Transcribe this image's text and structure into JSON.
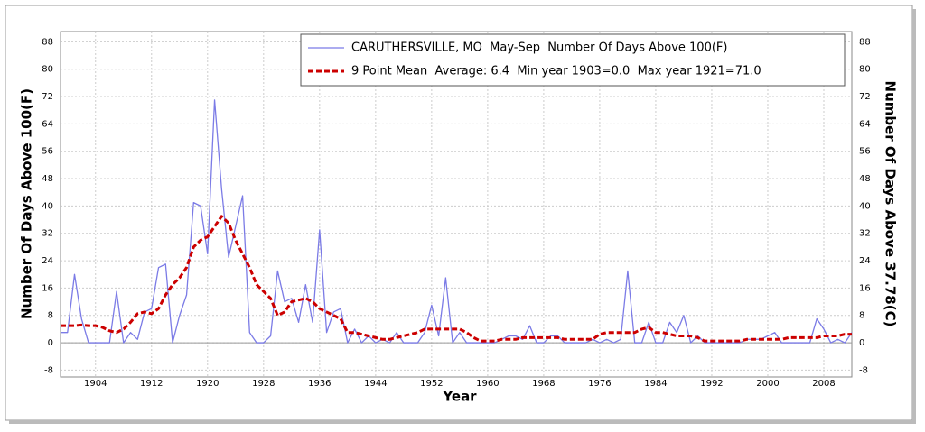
{
  "chart_data": {
    "type": "line",
    "legend_entries": [
      "CARUTHERSVILLE, MO  May-Sep  Number Of Days Above 100(F)",
      "9 Point Mean  Average: 6.4  Min year 1903=0.0  Max year 1921=71.0"
    ],
    "x_label": "Year",
    "y_label": "Number Of Days Above 100(F)",
    "y2_label": "Number Of Days Above 37.78(C)",
    "x": [
      1899,
      1900,
      1901,
      1902,
      1903,
      1904,
      1905,
      1906,
      1907,
      1908,
      1909,
      1910,
      1911,
      1912,
      1913,
      1914,
      1915,
      1916,
      1917,
      1918,
      1919,
      1920,
      1921,
      1922,
      1923,
      1924,
      1925,
      1926,
      1927,
      1928,
      1929,
      1930,
      1931,
      1932,
      1933,
      1934,
      1935,
      1936,
      1937,
      1938,
      1939,
      1940,
      1941,
      1942,
      1943,
      1944,
      1945,
      1946,
      1947,
      1948,
      1949,
      1950,
      1951,
      1952,
      1953,
      1954,
      1955,
      1956,
      1957,
      1958,
      1959,
      1960,
      1961,
      1962,
      1963,
      1964,
      1965,
      1966,
      1967,
      1968,
      1969,
      1970,
      1971,
      1972,
      1973,
      1974,
      1975,
      1976,
      1977,
      1978,
      1979,
      1980,
      1981,
      1982,
      1983,
      1984,
      1985,
      1986,
      1987,
      1988,
      1989,
      1990,
      1991,
      1992,
      1993,
      1994,
      1995,
      1996,
      1997,
      1998,
      1999,
      2000,
      2001,
      2002,
      2003,
      2004,
      2005,
      2006,
      2007,
      2008,
      2009,
      2010,
      2011,
      2012
    ],
    "series": [
      {
        "name": "CARUTHERSVILLE, MO  May-Sep  Number Of Days Above 100(F)",
        "color": "#7b7be6",
        "width": 1.3,
        "dash": false,
        "values": [
          3,
          3,
          20,
          7,
          0,
          0,
          0,
          0,
          15,
          0,
          3,
          1,
          9,
          10,
          22,
          23,
          0,
          8,
          14,
          41,
          40,
          26,
          71,
          45,
          25,
          34,
          43,
          3,
          0,
          0,
          2,
          21,
          12,
          13,
          6,
          17,
          6,
          33,
          3,
          9,
          10,
          0,
          4,
          0,
          2,
          0,
          1,
          0,
          3,
          0,
          0,
          0,
          3,
          11,
          2,
          19,
          0,
          3,
          0,
          0,
          0,
          0,
          0,
          1,
          2,
          2,
          1,
          5,
          0,
          0,
          2,
          2,
          0,
          0,
          0,
          0,
          1,
          0,
          1,
          0,
          1,
          21,
          0,
          0,
          6,
          0,
          0,
          6,
          3,
          8,
          0,
          2,
          0,
          0,
          0,
          0,
          0,
          0,
          1,
          1,
          1,
          2,
          3,
          0,
          0,
          0,
          0,
          0,
          7,
          4,
          0,
          1,
          0,
          3
        ]
      },
      {
        "name": "9 Point Mean  Average: 6.4  Min year 1903=0.0  Max year 1921=71.0",
        "color": "#cc0000",
        "width": 3,
        "dash": true,
        "values": [
          5,
          5,
          5,
          5.2,
          5,
          5,
          4.5,
          3.5,
          3,
          4,
          6,
          8.5,
          9,
          8.5,
          10,
          14,
          17,
          19,
          22,
          28,
          30,
          31,
          34,
          37,
          35,
          30,
          26,
          22,
          17,
          15,
          13,
          8,
          9,
          12,
          12.5,
          13,
          12,
          10,
          9,
          8,
          7,
          3,
          3,
          2.5,
          2,
          1.5,
          1,
          1,
          1.5,
          2,
          2.5,
          3,
          4,
          4,
          4,
          4,
          4,
          4,
          3,
          1.5,
          0.5,
          0.5,
          0.5,
          1,
          1,
          1,
          1.5,
          1.5,
          1.5,
          1.5,
          1.5,
          1.5,
          1,
          1,
          1,
          1,
          1,
          2.5,
          3,
          3,
          3,
          3,
          3,
          4,
          4.5,
          3,
          3,
          2.5,
          2,
          2,
          2,
          1.5,
          0.5,
          0.5,
          0.5,
          0.5,
          0.5,
          0.5,
          1,
          1,
          1,
          1,
          1,
          1,
          1.5,
          1.5,
          1.5,
          1.5,
          1.5,
          2,
          2,
          2,
          2.5,
          2.5
        ]
      }
    ],
    "xlim": [
      1899,
      2012
    ],
    "xticks": [
      1904,
      1912,
      1920,
      1928,
      1936,
      1944,
      1952,
      1960,
      1968,
      1976,
      1984,
      1992,
      2000,
      2008
    ],
    "ylim": [
      -10,
      91
    ],
    "yticks": [
      -8,
      0,
      8,
      16,
      24,
      32,
      40,
      48,
      56,
      64,
      72,
      80,
      88
    ],
    "y2lim": [
      -10,
      91
    ],
    "y2ticks": [
      -8,
      0,
      8,
      16,
      24,
      32,
      40,
      48,
      56,
      64,
      72,
      80,
      88
    ],
    "grid": true
  }
}
